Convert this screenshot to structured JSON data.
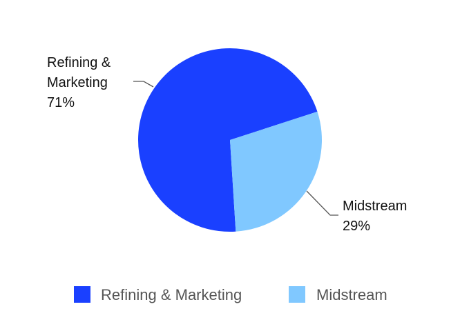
{
  "chart_data": {
    "type": "pie",
    "categories": [
      "Refining & Marketing",
      "Midstream"
    ],
    "values": [
      71,
      29
    ],
    "value_labels": [
      "71%",
      "29%"
    ],
    "colors": [
      "#1a40ff",
      "#80c8ff"
    ]
  }
}
